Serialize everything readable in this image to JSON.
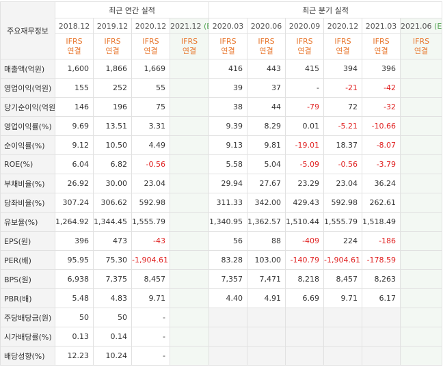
{
  "header": {
    "corner_label": "주요재무정보",
    "annual_group": "최근 연간 실적",
    "quarter_group": "최근 분기 실적",
    "periods": [
      {
        "label": "2018.12",
        "est": ""
      },
      {
        "label": "2019.12",
        "est": ""
      },
      {
        "label": "2020.12",
        "est": ""
      },
      {
        "label": "2021.12",
        "est": "(E)"
      },
      {
        "label": "2020.03",
        "est": ""
      },
      {
        "label": "2020.06",
        "est": ""
      },
      {
        "label": "2020.09",
        "est": ""
      },
      {
        "label": "2020.12",
        "est": ""
      },
      {
        "label": "2021.03",
        "est": ""
      },
      {
        "label": "2021.06",
        "est": "(E)"
      }
    ],
    "ifrs_top": "IFRS",
    "ifrs_bottom": "연결"
  },
  "rows": [
    {
      "label": "매출액(억원)",
      "values": [
        "1,600",
        "1,866",
        "1,669",
        "",
        "416",
        "443",
        "415",
        "394",
        "396",
        ""
      ]
    },
    {
      "label": "영업이익(억원)",
      "values": [
        "155",
        "252",
        "55",
        "",
        "39",
        "37",
        "-",
        "-21",
        "-42",
        ""
      ]
    },
    {
      "label": "당기순이익(억원)",
      "values": [
        "146",
        "196",
        "75",
        "",
        "38",
        "44",
        "-79",
        "72",
        "-32",
        ""
      ]
    },
    {
      "label": "영업이익률(%)",
      "values": [
        "9.69",
        "13.51",
        "3.31",
        "",
        "9.39",
        "8.29",
        "0.01",
        "-5.21",
        "-10.66",
        ""
      ]
    },
    {
      "label": "순이익률(%)",
      "values": [
        "9.12",
        "10.50",
        "4.49",
        "",
        "9.13",
        "9.81",
        "-19.01",
        "18.37",
        "-8.07",
        ""
      ]
    },
    {
      "label": "ROE(%)",
      "values": [
        "6.04",
        "6.82",
        "-0.56",
        "",
        "5.58",
        "5.04",
        "-5.09",
        "-0.56",
        "-3.79",
        ""
      ]
    },
    {
      "label": "부채비율(%)",
      "values": [
        "26.92",
        "30.00",
        "23.04",
        "",
        "29.94",
        "27.67",
        "23.29",
        "23.04",
        "36.24",
        ""
      ]
    },
    {
      "label": "당좌비율(%)",
      "values": [
        "307.24",
        "306.62",
        "592.98",
        "",
        "311.33",
        "342.00",
        "429.43",
        "592.98",
        "262.61",
        ""
      ]
    },
    {
      "label": "유보율(%)",
      "values": [
        "1,264.92",
        "1,344.45",
        "1,555.79",
        "",
        "1,340.95",
        "1,362.57",
        "1,510.44",
        "1,555.79",
        "1,518.49",
        ""
      ]
    },
    {
      "label": "EPS(원)",
      "values": [
        "396",
        "473",
        "-43",
        "",
        "56",
        "88",
        "-409",
        "224",
        "-186",
        ""
      ]
    },
    {
      "label": "PER(배)",
      "values": [
        "95.95",
        "75.30",
        "-1,904.61",
        "",
        "83.28",
        "103.00",
        "-140.79",
        "-1,904.61",
        "-178.59",
        ""
      ]
    },
    {
      "label": "BPS(원)",
      "values": [
        "6,938",
        "7,375",
        "8,457",
        "",
        "7,357",
        "7,471",
        "8,218",
        "8,457",
        "8,263",
        ""
      ]
    },
    {
      "label": "PBR(배)",
      "values": [
        "5.48",
        "4.83",
        "9.71",
        "",
        "4.40",
        "4.91",
        "6.69",
        "9.71",
        "6.17",
        ""
      ]
    },
    {
      "label": "주당배당금(원)",
      "values": [
        "50",
        "50",
        "-",
        "",
        "",
        "",
        "",
        "",
        "",
        ""
      ]
    },
    {
      "label": "시가배당률(%)",
      "values": [
        "0.13",
        "0.14",
        "-",
        "",
        "",
        "",
        "",
        "",
        "",
        ""
      ]
    },
    {
      "label": "배당성향(%)",
      "values": [
        "12.23",
        "10.24",
        "-",
        "",
        "",
        "",
        "",
        "",
        "",
        ""
      ]
    }
  ],
  "colors": {
    "negative": "#e02020",
    "ifrs": "#e8772e",
    "estimate_marker": "#4ca04c"
  }
}
